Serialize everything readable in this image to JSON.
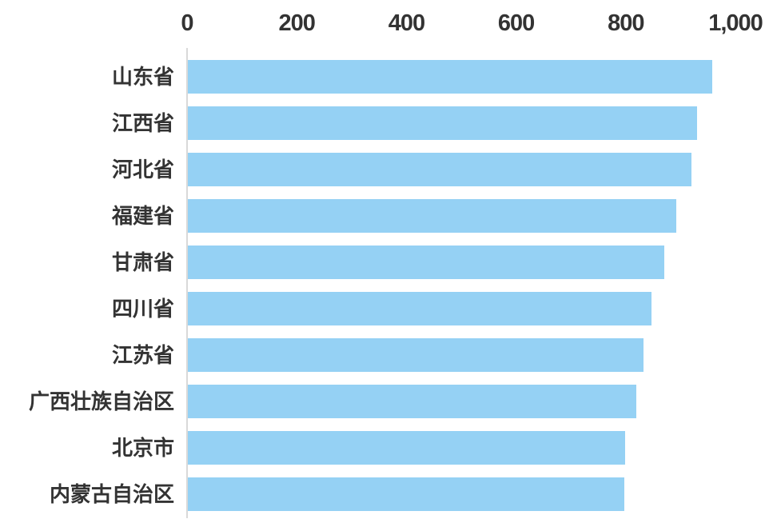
{
  "chart_data": {
    "type": "bar",
    "orientation": "horizontal",
    "title": "",
    "categories": [
      "山东省",
      "江西省",
      "河北省",
      "福建省",
      "甘肃省",
      "四川省",
      "江苏省",
      "广西壮族自治区",
      "北京市",
      "内蒙古自治区"
    ],
    "values": [
      956,
      929,
      918,
      891,
      869,
      845,
      831,
      818,
      798,
      796
    ],
    "xlim": [
      0,
      1000
    ],
    "x_ticks": [
      0,
      200,
      400,
      600,
      800,
      1000
    ],
    "x_tick_labels": [
      "0",
      "200",
      "400",
      "600",
      "800",
      "1,000"
    ],
    "grid": false,
    "legend": false,
    "colors": {
      "bar": "#95D1F4",
      "text": "#333333",
      "axis_line": "#D9D9D9"
    }
  }
}
